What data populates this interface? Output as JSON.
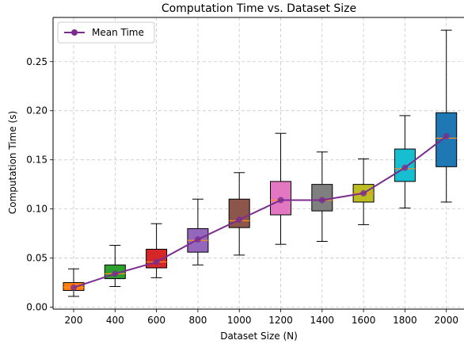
{
  "chart_data": {
    "type": "box",
    "title": "Computation Time vs. Dataset Size",
    "xlabel": "Dataset Size (N)",
    "ylabel": "Computation Time (s)",
    "categories": [
      "200",
      "400",
      "600",
      "800",
      "1000",
      "1200",
      "1400",
      "1600",
      "1800",
      "2000"
    ],
    "ylim": [
      -0.002,
      0.295
    ],
    "yticks": [
      "0.00",
      "0.05",
      "0.10",
      "0.15",
      "0.20",
      "0.25"
    ],
    "grid": true,
    "legend": {
      "position": "top-left",
      "entries": [
        "Mean Time"
      ]
    },
    "boxes": [
      {
        "min": 0.011,
        "q1": 0.017,
        "median": 0.02,
        "q3": 0.025,
        "max": 0.039,
        "color": "#ff7f0e"
      },
      {
        "min": 0.021,
        "q1": 0.029,
        "median": 0.034,
        "q3": 0.043,
        "max": 0.063,
        "color": "#2ca02c"
      },
      {
        "min": 0.03,
        "q1": 0.04,
        "median": 0.046,
        "q3": 0.059,
        "max": 0.085,
        "color": "#d62728"
      },
      {
        "min": 0.043,
        "q1": 0.056,
        "median": 0.068,
        "q3": 0.08,
        "max": 0.11,
        "color": "#9467bd"
      },
      {
        "min": 0.053,
        "q1": 0.081,
        "median": 0.088,
        "q3": 0.11,
        "max": 0.137,
        "color": "#8c564b"
      },
      {
        "min": 0.064,
        "q1": 0.094,
        "median": 0.109,
        "q3": 0.128,
        "max": 0.177,
        "color": "#e377c2"
      },
      {
        "min": 0.067,
        "q1": 0.098,
        "median": 0.109,
        "q3": 0.125,
        "max": 0.158,
        "color": "#7f7f7f"
      },
      {
        "min": 0.084,
        "q1": 0.107,
        "median": 0.116,
        "q3": 0.125,
        "max": 0.151,
        "color": "#bcbd22"
      },
      {
        "min": 0.101,
        "q1": 0.128,
        "median": 0.141,
        "q3": 0.161,
        "max": 0.195,
        "color": "#17becf"
      },
      {
        "min": 0.107,
        "q1": 0.143,
        "median": 0.172,
        "q3": 0.198,
        "max": 0.282,
        "color": "#1f77b4"
      }
    ],
    "series": [
      {
        "name": "Mean Time",
        "color": "#7b2d8e",
        "values": [
          0.02,
          0.034,
          0.046,
          0.069,
          0.089,
          0.109,
          0.109,
          0.116,
          0.142,
          0.174
        ]
      }
    ],
    "median_color": "#ff8c1a"
  }
}
